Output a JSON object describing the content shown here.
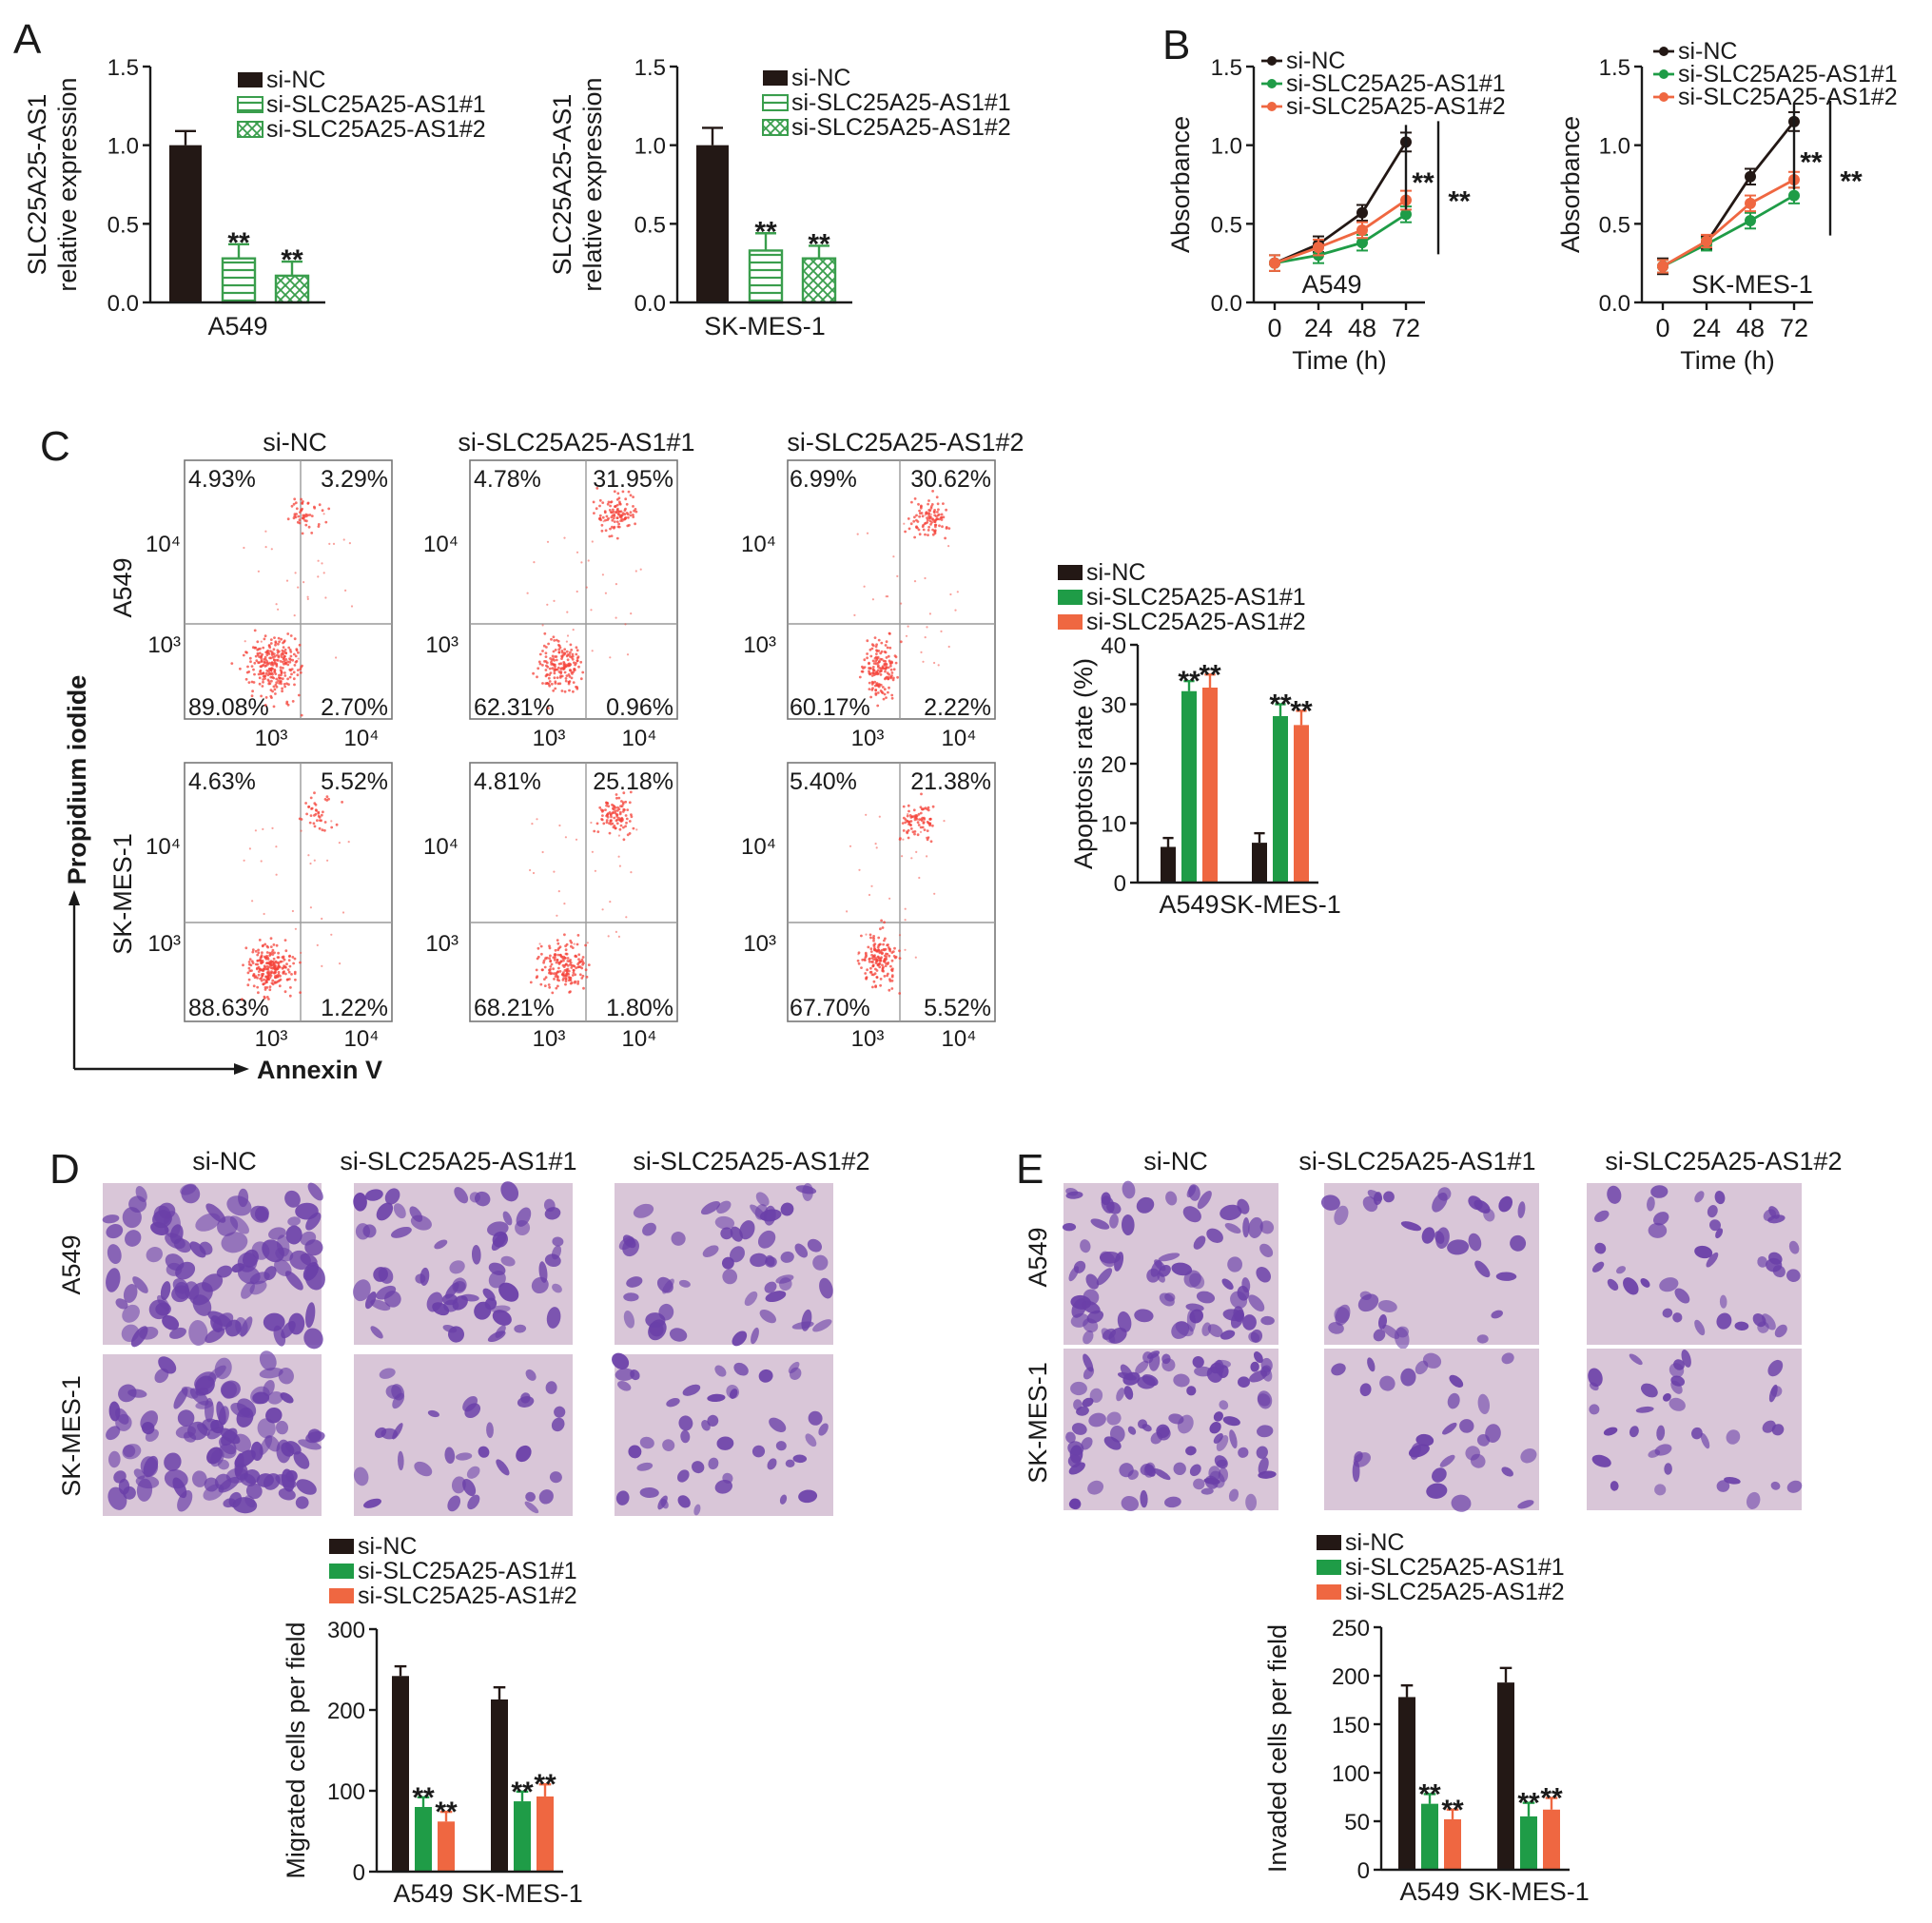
{
  "colors": {
    "si_NC": "#231815",
    "si_AS1_1": "#1f9c47",
    "si_AS1_2": "#ef6741",
    "expr_stroke": "#3a9e4d",
    "dot": "#f4433a",
    "stain_bg": "#d9c6d8",
    "stain_cell": "#6a3fa8"
  },
  "panels": {
    "A": "A",
    "B": "B",
    "C": "C",
    "D": "D",
    "E": "E"
  },
  "legend": {
    "nc": "si-NC",
    "as1_1": "si-SLC25A25-AS1#1",
    "as1_2": "si-SLC25A25-AS1#2"
  },
  "sig": "**",
  "panel_a": {
    "ylabel1": "SLC25A25-AS1",
    "ylabel2": "relative expression",
    "yticks": [
      "0.0",
      "0.5",
      "1.0",
      "1.5"
    ]
  },
  "panel_b": {
    "ylabel": "Absorbance",
    "xlabel": "Time (h)",
    "xticks": [
      "0",
      "24",
      "48",
      "72"
    ],
    "yticks": [
      "0.0",
      "0.5",
      "1.0",
      "1.5"
    ]
  },
  "panel_c": {
    "headers": [
      "si-NC",
      "si-SLC25A25-AS1#1",
      "si-SLC25A25-AS1#2"
    ],
    "row_labels": [
      "A549",
      "SK-MES-1"
    ],
    "y_axis": "Propidium iodide",
    "x_axis": "Annexin V",
    "tick_lo": "10³",
    "tick_hi": "10⁴",
    "quadrants": [
      [
        {
          "ul": "4.93%",
          "ur": "3.29%",
          "ll": "89.08%",
          "lr": "2.70%"
        },
        {
          "ul": "4.78%",
          "ur": "31.95%",
          "ll": "62.31%",
          "lr": "0.96%"
        },
        {
          "ul": "6.99%",
          "ur": "30.62%",
          "ll": "60.17%",
          "lr": "2.22%"
        }
      ],
      [
        {
          "ul": "4.63%",
          "ur": "5.52%",
          "ll": "88.63%",
          "lr": "1.22%"
        },
        {
          "ul": "4.81%",
          "ur": "25.18%",
          "ll": "68.21%",
          "lr": "1.80%"
        },
        {
          "ul": "5.40%",
          "ur": "21.38%",
          "ll": "67.70%",
          "lr": "5.52%"
        }
      ]
    ],
    "bar_ylabel": "Apoptosis rate (%)",
    "bar_yticks": [
      "0",
      "10",
      "20",
      "30",
      "40"
    ]
  },
  "panel_d": {
    "headers": [
      "si-NC",
      "si-SLC25A25-AS1#1",
      "si-SLC25A25-AS1#2"
    ],
    "row_labels": [
      "A549",
      "SK-MES-1"
    ],
    "bar_ylabel": "Migrated cells per field",
    "bar_yticks": [
      "0",
      "100",
      "200",
      "300"
    ]
  },
  "panel_e": {
    "headers": [
      "si-NC",
      "si-SLC25A25-AS1#1",
      "si-SLC25A25-AS1#2"
    ],
    "row_labels": [
      "A549",
      "SK-MES-1"
    ],
    "bar_ylabel": "Invaded cells per field",
    "bar_yticks": [
      "0",
      "50",
      "100",
      "150",
      "200",
      "250"
    ]
  },
  "chart_data": [
    {
      "type": "bar",
      "id": "A_A549",
      "categories": [
        "A549"
      ],
      "ylabel": "SLC25A25-AS1 relative expression",
      "ylim": [
        0,
        1.5
      ],
      "series": [
        {
          "name": "si-NC",
          "values": [
            1.0
          ],
          "errors": [
            0.09
          ]
        },
        {
          "name": "si-SLC25A25-AS1#1",
          "values": [
            0.28
          ],
          "errors": [
            0.09
          ],
          "sig": "**"
        },
        {
          "name": "si-SLC25A25-AS1#2",
          "values": [
            0.17
          ],
          "errors": [
            0.09
          ],
          "sig": "**"
        }
      ]
    },
    {
      "type": "bar",
      "id": "A_SKMES1",
      "categories": [
        "SK-MES-1"
      ],
      "ylabel": "SLC25A25-AS1 relative expression",
      "ylim": [
        0,
        1.5
      ],
      "series": [
        {
          "name": "si-NC",
          "values": [
            1.0
          ],
          "errors": [
            0.11
          ]
        },
        {
          "name": "si-SLC25A25-AS1#1",
          "values": [
            0.33
          ],
          "errors": [
            0.11
          ],
          "sig": "**"
        },
        {
          "name": "si-SLC25A25-AS1#2",
          "values": [
            0.28
          ],
          "errors": [
            0.08
          ],
          "sig": "**"
        }
      ]
    },
    {
      "type": "line",
      "id": "B_A549",
      "annotation": "A549",
      "x": [
        0,
        24,
        48,
        72
      ],
      "xlabel": "Time (h)",
      "ylabel": "Absorbance",
      "ylim": [
        0,
        1.5
      ],
      "series": [
        {
          "name": "si-NC",
          "values": [
            0.25,
            0.37,
            0.57,
            1.02
          ],
          "errors": [
            0.05,
            0.05,
            0.05,
            0.06
          ]
        },
        {
          "name": "si-SLC25A25-AS1#1",
          "values": [
            0.25,
            0.3,
            0.38,
            0.56
          ],
          "errors": [
            0.05,
            0.05,
            0.05,
            0.05
          ]
        },
        {
          "name": "si-SLC25A25-AS1#2",
          "values": [
            0.25,
            0.35,
            0.46,
            0.65
          ],
          "errors": [
            0.05,
            0.05,
            0.05,
            0.06
          ]
        }
      ],
      "sig": [
        "**",
        "**"
      ]
    },
    {
      "type": "line",
      "id": "B_SKMES1",
      "annotation": "SK-MES-1",
      "x": [
        0,
        24,
        48,
        72
      ],
      "xlabel": "Time (h)",
      "ylabel": "Absorbance",
      "ylim": [
        0,
        1.5
      ],
      "series": [
        {
          "name": "si-NC",
          "values": [
            0.23,
            0.38,
            0.8,
            1.15
          ],
          "errors": [
            0.05,
            0.04,
            0.05,
            0.06
          ]
        },
        {
          "name": "si-SLC25A25-AS1#1",
          "values": [
            0.23,
            0.37,
            0.52,
            0.68
          ],
          "errors": [
            0.04,
            0.04,
            0.05,
            0.05
          ]
        },
        {
          "name": "si-SLC25A25-AS1#2",
          "values": [
            0.23,
            0.39,
            0.63,
            0.78
          ],
          "errors": [
            0.04,
            0.04,
            0.05,
            0.05
          ]
        }
      ],
      "sig": [
        "**",
        "**"
      ]
    },
    {
      "type": "bar",
      "id": "C_apoptosis",
      "categories": [
        "A549",
        "SK-MES-1"
      ],
      "ylabel": "Apoptosis rate (%)",
      "ylim": [
        0,
        40
      ],
      "series": [
        {
          "name": "si-NC",
          "values": [
            6.0,
            6.7
          ],
          "errors": [
            1.5,
            1.6
          ]
        },
        {
          "name": "si-SLC25A25-AS1#1",
          "values": [
            32.2,
            28.0
          ],
          "errors": [
            1.7,
            2.0
          ],
          "sig": "**"
        },
        {
          "name": "si-SLC25A25-AS1#2",
          "values": [
            32.8,
            26.5
          ],
          "errors": [
            2.2,
            2.4
          ],
          "sig": "**"
        }
      ]
    },
    {
      "type": "bar",
      "id": "D_migration",
      "categories": [
        "A549",
        "SK-MES-1"
      ],
      "ylabel": "Migrated cells per field",
      "ylim": [
        0,
        300
      ],
      "series": [
        {
          "name": "si-NC",
          "values": [
            242,
            213
          ],
          "errors": [
            12,
            15
          ]
        },
        {
          "name": "si-SLC25A25-AS1#1",
          "values": [
            80,
            87
          ],
          "errors": [
            12,
            12
          ],
          "sig": "**"
        },
        {
          "name": "si-SLC25A25-AS1#2",
          "values": [
            62,
            93
          ],
          "errors": [
            12,
            15
          ],
          "sig": "**"
        }
      ]
    },
    {
      "type": "bar",
      "id": "E_invasion",
      "categories": [
        "A549",
        "SK-MES-1"
      ],
      "ylabel": "Invaded cells per field",
      "ylim": [
        0,
        250
      ],
      "series": [
        {
          "name": "si-NC",
          "values": [
            178,
            193
          ],
          "errors": [
            12,
            15
          ]
        },
        {
          "name": "si-SLC25A25-AS1#1",
          "values": [
            68,
            55
          ],
          "errors": [
            10,
            14
          ],
          "sig": "**"
        },
        {
          "name": "si-SLC25A25-AS1#2",
          "values": [
            52,
            62
          ],
          "errors": [
            10,
            12
          ],
          "sig": "**"
        }
      ]
    }
  ]
}
